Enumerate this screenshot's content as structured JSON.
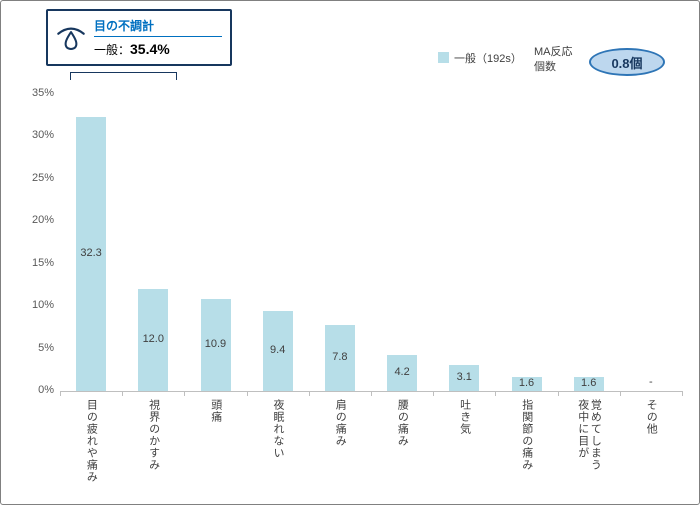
{
  "info_box": {
    "title": "目の不調計",
    "value_label": "一般：",
    "value": "35.4%",
    "icon": "eye-tear-icon"
  },
  "legend": {
    "series_label": "一般（192s）",
    "ma_label": "MA反応\n個数",
    "badge": "0.8個"
  },
  "chart_data": {
    "type": "bar",
    "title": "",
    "series_name": "一般（192s）",
    "categories": [
      "目の疲れや痛み",
      "視界のかすみ",
      "頭痛",
      "夜眠れない",
      "肩の痛み",
      "腰の痛み",
      "吐き気",
      "指関節の痛み",
      "夜中に目が\n覚めてしまう",
      "その他"
    ],
    "values": [
      32.3,
      12.0,
      10.9,
      9.4,
      7.8,
      4.2,
      3.1,
      1.6,
      1.6,
      null
    ],
    "labels": [
      "32.3",
      "12.0",
      "10.9",
      "9.4",
      "7.8",
      "4.2",
      "3.1",
      "1.6",
      "1.6",
      "-"
    ],
    "xlabel": "",
    "ylabel": "",
    "ylim": [
      0,
      35
    ],
    "ytick_step": 5,
    "ytick_labels": [
      "0%",
      "5%",
      "10%",
      "15%",
      "20%",
      "25%",
      "30%",
      "35%"
    ],
    "grid": false,
    "legend_position": "top-right",
    "bar_color": "#B7DEE8"
  },
  "colors": {
    "bar_fill": "#B7DEE8",
    "box_border": "#17375E",
    "title_blue": "#0070C0",
    "badge_border": "#2E75B6",
    "badge_fill": "#BDD7EE",
    "axis_gray": "#BFBFBF",
    "text_gray": "#404040"
  }
}
